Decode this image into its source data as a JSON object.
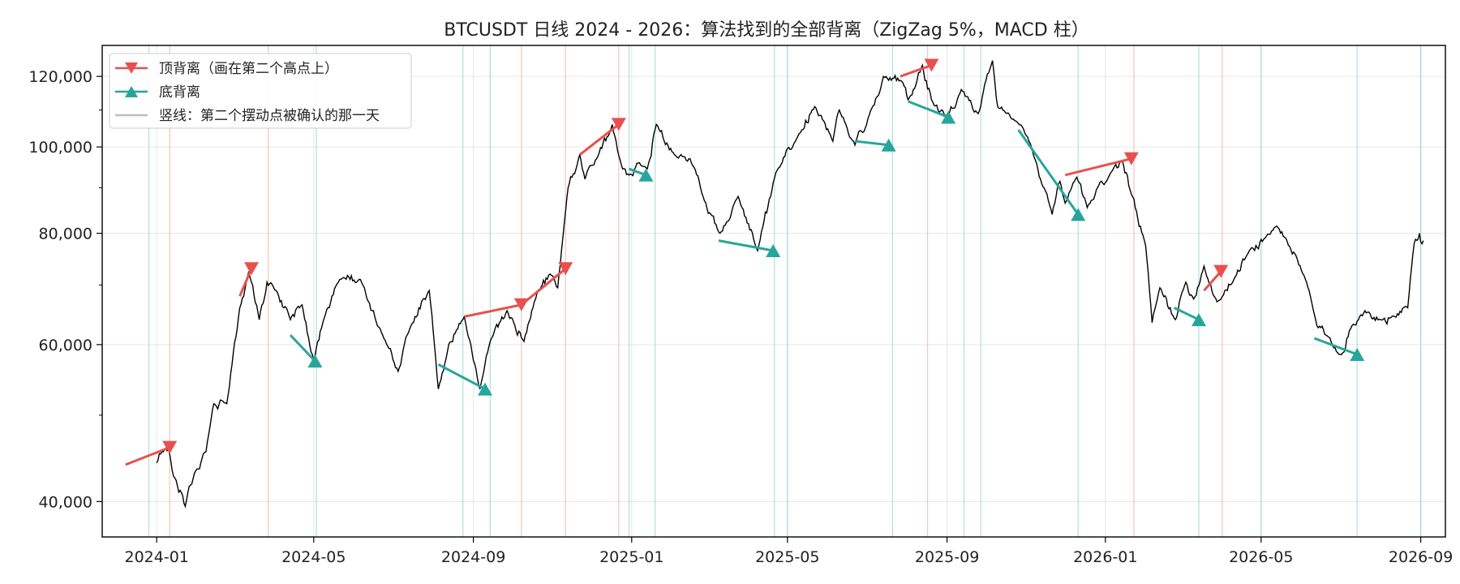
{
  "colors": {
    "top": "#e8504f",
    "bottom": "#26a69a",
    "price": "#000000",
    "grid": "#e6e6e6",
    "legend_confirm": "#bdbdbd"
  },
  "chart_data": {
    "type": "line",
    "title": "BTCUSDT 日线 2024 - 2026：算法找到的全部背离（ZigZag 5%，MACD 柱）",
    "xlabel": "",
    "ylabel": "",
    "y_scale": "log",
    "ylim": [
      36500,
      130000
    ],
    "xlim": [
      "2023-11-20",
      "2026-09-20"
    ],
    "grid": true,
    "legend_position": "top-left",
    "x_ticks": [
      "2024-01",
      "2024-05",
      "2024-09",
      "2025-01",
      "2025-05",
      "2025-09",
      "2026-01",
      "2026-05",
      "2026-09"
    ],
    "y_ticks": [
      {
        "value": 40000,
        "label": "40,000"
      },
      {
        "value": 60000,
        "label": "60,000"
      },
      {
        "value": 80000,
        "label": "80,000"
      },
      {
        "value": 100000,
        "label": "100,000"
      },
      {
        "value": 120000,
        "label": "120,000"
      }
    ],
    "legend": [
      {
        "label": "顶背离（画在第二个高点上）",
        "kind": "top"
      },
      {
        "label": "底背离",
        "kind": "bottom"
      },
      {
        "label": "竖线：第二个摆动点被确认的那一天",
        "kind": "confirm"
      }
    ],
    "price_series": {
      "name": "BTCUSDT",
      "anchors": [
        [
          "2024-01-01",
          44200
        ],
        [
          "2024-01-05",
          45500
        ],
        [
          "2024-01-10",
          45800
        ],
        [
          "2024-01-15",
          42500
        ],
        [
          "2024-01-23",
          39500
        ],
        [
          "2024-01-30",
          43000
        ],
        [
          "2024-02-08",
          45500
        ],
        [
          "2024-02-14",
          51500
        ],
        [
          "2024-02-24",
          51500
        ],
        [
          "2024-03-05",
          66000
        ],
        [
          "2024-03-12",
          72500
        ],
        [
          "2024-03-20",
          64000
        ],
        [
          "2024-03-26",
          70500
        ],
        [
          "2024-04-02",
          69000
        ],
        [
          "2024-04-13",
          64000
        ],
        [
          "2024-04-22",
          66500
        ],
        [
          "2024-05-01",
          57500
        ],
        [
          "2024-05-08",
          63500
        ],
        [
          "2024-05-21",
          71000
        ],
        [
          "2024-06-06",
          71000
        ],
        [
          "2024-06-24",
          61000
        ],
        [
          "2024-07-05",
          56000
        ],
        [
          "2024-07-14",
          62500
        ],
        [
          "2024-07-29",
          69000
        ],
        [
          "2024-08-05",
          53500
        ],
        [
          "2024-08-13",
          60000
        ],
        [
          "2024-08-25",
          64500
        ],
        [
          "2024-09-06",
          53500
        ],
        [
          "2024-09-14",
          60500
        ],
        [
          "2024-09-27",
          65500
        ],
        [
          "2024-10-10",
          60500
        ],
        [
          "2024-10-20",
          68500
        ],
        [
          "2024-10-30",
          72000
        ],
        [
          "2024-11-05",
          69500
        ],
        [
          "2024-11-13",
          90000
        ],
        [
          "2024-11-22",
          98000
        ],
        [
          "2024-11-26",
          92000
        ],
        [
          "2024-12-05",
          97000
        ],
        [
          "2024-12-17",
          106000
        ],
        [
          "2024-12-24",
          95500
        ],
        [
          "2024-12-30",
          93000
        ],
        [
          "2025-01-07",
          96000
        ],
        [
          "2025-01-13",
          94500
        ],
        [
          "2025-01-20",
          106000
        ],
        [
          "2025-02-03",
          98000
        ],
        [
          "2025-02-15",
          97000
        ],
        [
          "2025-02-25",
          88000
        ],
        [
          "2025-03-10",
          80000
        ],
        [
          "2025-03-24",
          88000
        ],
        [
          "2025-04-08",
          76500
        ],
        [
          "2025-04-22",
          93500
        ],
        [
          "2025-05-10",
          103500
        ],
        [
          "2025-05-22",
          111000
        ],
        [
          "2025-06-05",
          101500
        ],
        [
          "2025-06-10",
          110000
        ],
        [
          "2025-06-22",
          100500
        ],
        [
          "2025-07-03",
          108500
        ],
        [
          "2025-07-14",
          120000
        ],
        [
          "2025-07-28",
          118500
        ],
        [
          "2025-08-02",
          113000
        ],
        [
          "2025-08-13",
          123500
        ],
        [
          "2025-08-20",
          113000
        ],
        [
          "2025-09-01",
          108000
        ],
        [
          "2025-09-12",
          116000
        ],
        [
          "2025-09-25",
          109000
        ],
        [
          "2025-10-06",
          125000
        ],
        [
          "2025-10-10",
          111000
        ],
        [
          "2025-10-22",
          107500
        ],
        [
          "2025-11-04",
          101000
        ],
        [
          "2025-11-21",
          84000
        ],
        [
          "2025-11-27",
          91500
        ],
        [
          "2025-12-01",
          86500
        ],
        [
          "2025-12-10",
          92500
        ],
        [
          "2025-12-18",
          85500
        ],
        [
          "2026-01-05",
          93500
        ],
        [
          "2026-01-14",
          96500
        ],
        [
          "2026-01-20",
          89500
        ],
        [
          "2026-02-01",
          77500
        ],
        [
          "2026-02-06",
          63500
        ],
        [
          "2026-02-12",
          69500
        ],
        [
          "2026-02-24",
          64000
        ],
        [
          "2026-03-04",
          70500
        ],
        [
          "2026-03-10",
          67500
        ],
        [
          "2026-03-18",
          73500
        ],
        [
          "2026-03-28",
          67000
        ],
        [
          "2026-04-10",
          71000
        ],
        [
          "2026-04-22",
          76500
        ],
        [
          "2026-05-04",
          79000
        ],
        [
          "2026-05-13",
          81500
        ],
        [
          "2026-05-20",
          79000
        ],
        [
          "2026-06-05",
          70500
        ],
        [
          "2026-06-13",
          63000
        ],
        [
          "2026-06-20",
          61500
        ],
        [
          "2026-07-02",
          58500
        ],
        [
          "2026-07-10",
          63000
        ],
        [
          "2026-07-20",
          65500
        ],
        [
          "2026-08-01",
          64000
        ],
        [
          "2026-08-12",
          64500
        ],
        [
          "2026-08-22",
          66000
        ],
        [
          "2026-08-27",
          78000
        ],
        [
          "2026-08-31",
          80000
        ],
        [
          "2026-09-03",
          78500
        ]
      ]
    },
    "top_divergences": [
      {
        "from": [
          "2023-12-08",
          44000
        ],
        "to": [
          "2024-01-11",
          46000
        ],
        "confirm": "2024-01-11"
      },
      {
        "from": [
          "2024-03-05",
          68000
        ],
        "to": [
          "2024-03-14",
          73000
        ],
        "confirm": "2024-03-27"
      },
      {
        "from": [
          "2024-08-25",
          64500
        ],
        "to": [
          "2024-10-08",
          66500
        ],
        "confirm": "2024-10-08"
      },
      {
        "from": [
          "2024-10-08",
          66500
        ],
        "to": [
          "2024-11-11",
          73000
        ],
        "confirm": "2024-11-11"
      },
      {
        "from": [
          "2024-11-22",
          98000
        ],
        "to": [
          "2024-12-22",
          106000
        ],
        "confirm": "2024-12-22"
      },
      {
        "from": [
          "2025-07-27",
          120000
        ],
        "to": [
          "2025-08-20",
          123500
        ],
        "confirm": "2025-08-17"
      },
      {
        "from": [
          "2025-12-01",
          93000
        ],
        "to": [
          "2026-01-21",
          97000
        ],
        "confirm": "2026-01-23"
      },
      {
        "from": [
          "2026-03-18",
          69000
        ],
        "to": [
          "2026-03-31",
          72500
        ],
        "confirm": "2026-04-01"
      }
    ],
    "bottom_divergences": [
      {
        "from": [
          "2024-04-13",
          61500
        ],
        "to": [
          "2024-05-02",
          57500
        ],
        "confirm": "2024-05-03"
      },
      {
        "from": [
          "2024-08-05",
          57000
        ],
        "to": [
          "2024-09-10",
          53500
        ],
        "confirm": "2024-09-14"
      },
      {
        "from": [
          "2024-12-30",
          94500
        ],
        "to": [
          "2025-01-12",
          93000
        ],
        "confirm": "2025-01-19"
      },
      {
        "from": [
          "2025-03-09",
          78500
        ],
        "to": [
          "2025-04-20",
          76500
        ],
        "confirm": "2025-04-21"
      },
      {
        "from": [
          "2025-06-22",
          101500
        ],
        "to": [
          "2025-07-18",
          100500
        ],
        "confirm": "2025-07-21"
      },
      {
        "from": [
          "2025-08-02",
          112500
        ],
        "to": [
          "2025-09-02",
          108000
        ],
        "confirm": "2025-09-14"
      },
      {
        "from": [
          "2025-10-26",
          104500
        ],
        "to": [
          "2025-12-11",
          84000
        ],
        "confirm": "2025-12-11"
      },
      {
        "from": [
          "2026-02-23",
          66000
        ],
        "to": [
          "2026-03-14",
          64000
        ],
        "confirm": "2026-03-14"
      },
      {
        "from": [
          "2026-06-11",
          61000
        ],
        "to": [
          "2026-07-14",
          58500
        ],
        "confirm": "2026-07-14"
      }
    ],
    "extra_confirm_lines": {
      "top": [],
      "bottom": [
        "2023-12-26",
        "2024-08-24",
        "2024-12-30",
        "2025-05-01",
        "2025-09-27",
        "2026-05-01",
        "2026-09-01"
      ]
    }
  }
}
